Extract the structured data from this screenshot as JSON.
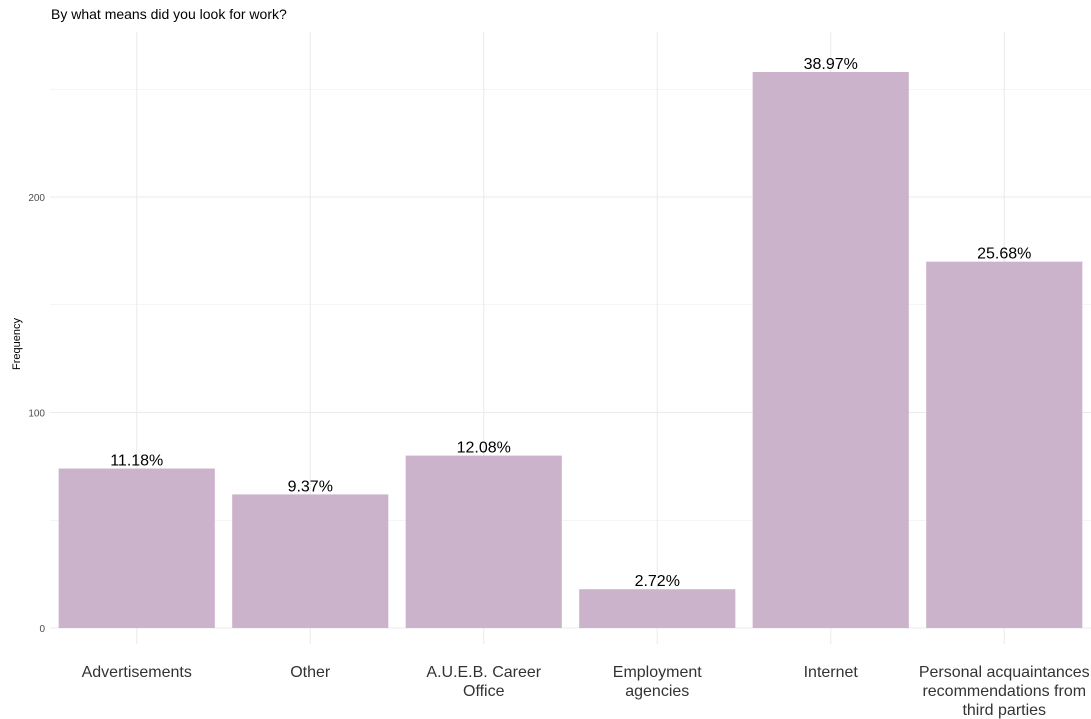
{
  "chart_data": {
    "type": "bar",
    "title": "By what means did you look for work?",
    "xlabel": "",
    "ylabel": "Frequency",
    "categories": [
      [
        "Advertisements"
      ],
      [
        "Other"
      ],
      [
        "A.U.E.B. Career",
        "Office"
      ],
      [
        "Employment",
        "agencies"
      ],
      [
        "Internet"
      ],
      [
        "Personal acquaintances",
        "recommendations from",
        "third parties"
      ]
    ],
    "values": [
      74,
      62,
      80,
      18,
      258,
      170
    ],
    "data_labels": [
      "11.18%",
      "9.37%",
      "12.08%",
      "2.72%",
      "38.97%",
      "25.68%"
    ],
    "yticks": [
      0,
      100,
      200
    ],
    "ylim": [
      -7,
      275
    ],
    "grid": true,
    "bar_color": "#ccb3cc",
    "grid_color": "#ebebeb"
  }
}
